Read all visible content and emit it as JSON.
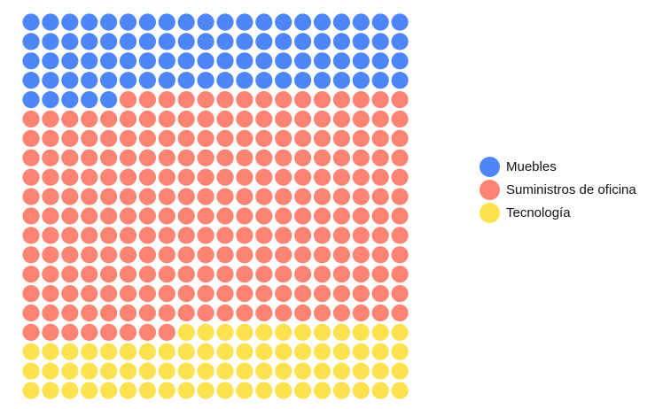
{
  "chart_data": {
    "type": "waffle",
    "grid": {
      "rows": 20,
      "cols": 20,
      "fill_order": "row-major"
    },
    "series": [
      {
        "name": "Muebles",
        "value": 85,
        "color": "#4f86f7"
      },
      {
        "name": "Suministros de oficina",
        "value": 243,
        "color": "#fd8373"
      },
      {
        "name": "Tecnología",
        "value": 72,
        "color": "#fde24f"
      }
    ],
    "legend": {
      "position": "right"
    },
    "title": "",
    "xlabel": "",
    "ylabel": ""
  }
}
